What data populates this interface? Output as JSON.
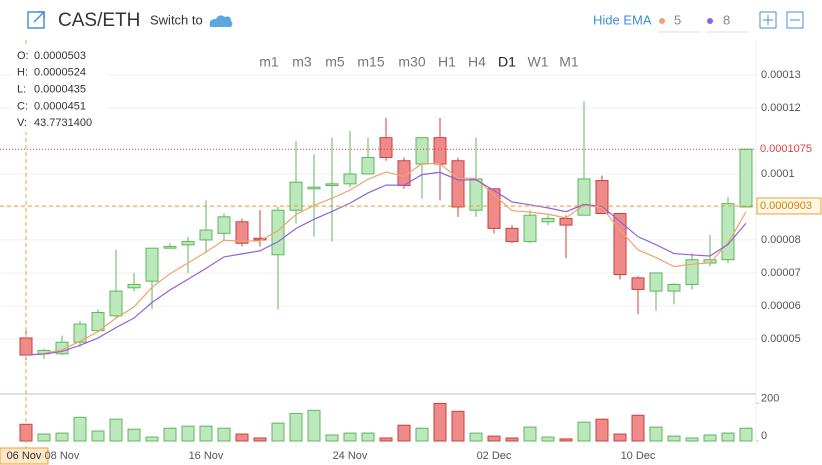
{
  "header": {
    "pair": "CAS/ETH",
    "switch_to": "Switch to",
    "hide_ema": "Hide EMA",
    "ema_fast": 5,
    "ema_slow": 8,
    "ema_fast_color": "#f0a36a",
    "ema_slow_color": "#9064d8"
  },
  "info": [
    {
      "label": "O:",
      "value": "0.0000503"
    },
    {
      "label": "H:",
      "value": "0.0000524"
    },
    {
      "label": "L:",
      "value": "0.0000435"
    },
    {
      "label": "C:",
      "value": "0.0000451"
    },
    {
      "label": "V:",
      "value": "43.7731400"
    }
  ],
  "timeframes": [
    "m1",
    "m3",
    "m5",
    "m15",
    "m30",
    "H1",
    "H4",
    "D1",
    "W1",
    "M1"
  ],
  "active_timeframe": "D1",
  "chart_data": {
    "type": "candlestick",
    "categories": [
      "06 Nov",
      null,
      "08 Nov",
      null,
      null,
      null,
      null,
      null,
      null,
      null,
      "16 Nov",
      null,
      null,
      null,
      null,
      null,
      null,
      null,
      "24 Nov",
      null,
      null,
      null,
      null,
      null,
      null,
      null,
      "02 Dec",
      null,
      null,
      null,
      null,
      null,
      null,
      null,
      "10 Dec",
      null,
      null,
      null,
      null,
      null,
      null
    ],
    "open": [
      5.03e-05,
      4.55e-05,
      4.55e-05,
      4.9e-05,
      5.25e-05,
      5.7e-05,
      6.55e-05,
      6.75e-05,
      7.75e-05,
      7.85e-05,
      8e-05,
      8.2e-05,
      8.55e-05,
      8.05e-05,
      7.55e-05,
      8.9e-05,
      9.55e-05,
      9.65e-05,
      9.7e-05,
      0.0001,
      0.000111,
      0.000104,
      0.000103,
      0.000111,
      0.000104,
      8.9e-05,
      9.55e-05,
      8.35e-05,
      7.95e-05,
      8.55e-05,
      8.65e-05,
      8.75e-05,
      9.8e-05,
      8.8e-05,
      6.85e-05,
      6.45e-05,
      6.45e-05,
      6.65e-05,
      7.3e-05,
      7.4e-05,
      9e-05
    ],
    "high": [
      5.24e-05,
      4.7e-05,
      5.1e-05,
      5.55e-05,
      5.9e-05,
      7.7e-05,
      7e-05,
      7.75e-05,
      7.9e-05,
      8.1e-05,
      9.2e-05,
      8.8e-05,
      8.65e-05,
      8.9e-05,
      9e-05,
      0.00011,
      0.000106,
      0.000111,
      0.000113,
      0.000111,
      0.000117,
      0.000105,
      0.000111,
      0.000117,
      0.000105,
      0.000111,
      9.55e-05,
      8.45e-05,
      8.9e-05,
      8.75e-05,
      8.75e-05,
      0.000122,
      9.95e-05,
      8.8e-05,
      6.9e-05,
      7e-05,
      6.7e-05,
      7.6e-05,
      8.15e-05,
      9.3e-05,
      0.0001075
    ],
    "low": [
      4.35e-05,
      4.4e-05,
      4.5e-05,
      4.75e-05,
      5.2e-05,
      5.65e-05,
      6.45e-05,
      5.9e-05,
      7.75e-05,
      7e-05,
      7.6e-05,
      8e-05,
      7.8e-05,
      7.8e-05,
      5.9e-05,
      8.5e-05,
      8.1e-05,
      7.95e-05,
      9.6e-05,
      0.0001,
      0.000104,
      9.55e-05,
      9.25e-05,
      9.2e-05,
      8.7e-05,
      8.7e-05,
      8.2e-05,
      7.9e-05,
      7.9e-05,
      8.45e-05,
      7.45e-05,
      8.75e-05,
      8.8e-05,
      6.8e-05,
      5.75e-05,
      5.85e-05,
      6.05e-05,
      6.5e-05,
      7.2e-05,
      7.3e-05,
      9e-05
    ],
    "close": [
      4.51e-05,
      4.65e-05,
      4.9e-05,
      5.45e-05,
      5.8e-05,
      6.45e-05,
      6.65e-05,
      7.75e-05,
      7.8e-05,
      7.95e-05,
      8.3e-05,
      8.7e-05,
      7.9e-05,
      8e-05,
      8.9e-05,
      9.75e-05,
      9.6e-05,
      9.7e-05,
      0.0001,
      0.000105,
      0.000105,
      9.65e-05,
      0.000111,
      0.000103,
      9e-05,
      9.85e-05,
      8.35e-05,
      7.95e-05,
      8.75e-05,
      8.65e-05,
      8.45e-05,
      9.85e-05,
      8.8e-05,
      6.95e-05,
      6.5e-05,
      7e-05,
      6.65e-05,
      7.4e-05,
      7.4e-05,
      9.1e-05,
      0.0001075
    ],
    "volume": [
      89,
      37,
      42,
      126,
      53,
      116,
      63,
      21,
      68,
      79,
      79,
      68,
      37,
      16,
      95,
      147,
      163,
      32,
      42,
      42,
      16,
      84,
      68,
      200,
      158,
      42,
      26,
      16,
      74,
      21,
      11,
      100,
      116,
      37,
      137,
      74,
      26,
      16,
      32,
      42,
      68
    ],
    "ylim": [
      3.3e-05,
      0.0001406
    ],
    "yticks": [
      5e-05,
      6e-05,
      7e-05,
      8e-05,
      9e-05,
      0.0001,
      0.00012,
      0.00013
    ],
    "y2lim": [
      0,
      250
    ],
    "y2ticks": [
      0,
      200
    ],
    "up_color": "#bde8bd",
    "up_edge": "#5cb85c",
    "down_color": "#ee8a8a",
    "down_edge": "#c9403c",
    "last_price": 0.0001075,
    "last_price_color": "#e0413c",
    "crosshair_price": 9.03e-05,
    "crosshair_color": "#f0a030",
    "grid": true
  }
}
